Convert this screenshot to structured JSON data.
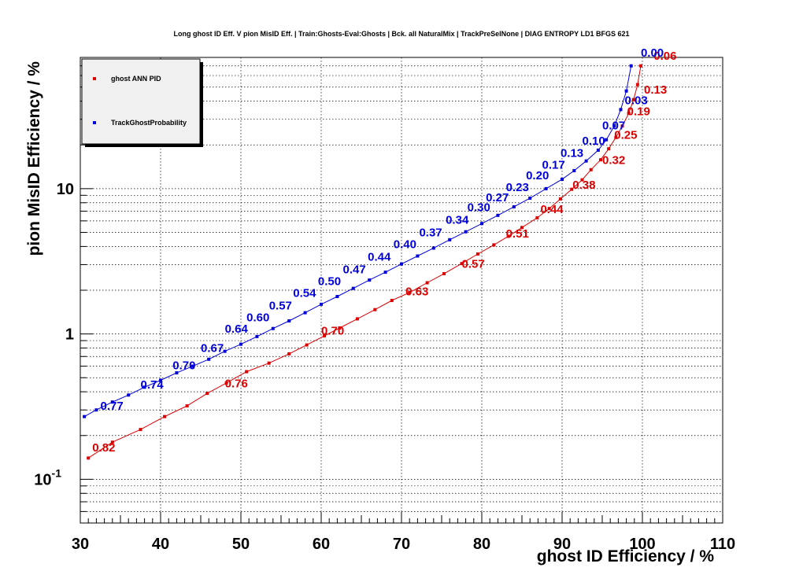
{
  "chart_data": {
    "type": "line",
    "title": "Long ghost ID Eff. V pion MisID Eff. | Train:Ghosts-Eval:Ghosts | Bck. all NaturalMix | TrackPreSelNone | DIAG ENTROPY LD1 BFGS 621",
    "xlabel": "ghost ID Efficiency / %",
    "ylabel": "pion MisID Efficiency / %",
    "xlim": [
      30,
      110
    ],
    "ylim": [
      0.05,
      80
    ],
    "yscale": "log",
    "grid": true,
    "legend_position": "top-left",
    "x_ticks": [
      "30",
      "40",
      "50",
      "60",
      "70",
      "80",
      "90",
      "100",
      "110"
    ],
    "y_ticks": [
      {
        "value": 0.1,
        "base": "10",
        "exp": "-1"
      },
      {
        "value": 1,
        "base": "1",
        "exp": ""
      },
      {
        "value": 10,
        "base": "10",
        "exp": ""
      }
    ],
    "series": [
      {
        "name": "ghost ANN PID",
        "color": "#dd0000",
        "x": [
          31,
          34,
          37.5,
          40.5,
          43.3,
          45.8,
          48.2,
          50.7,
          53.5,
          56,
          58.2,
          60.4,
          62.3,
          64.5,
          66.7,
          68.8,
          71,
          73.2,
          75.3,
          77.5,
          79.5,
          81.5,
          83.3,
          85,
          86.9,
          88.4,
          89.8,
          91.2,
          92.5,
          93.6,
          94.8,
          95.8,
          96.7,
          97.5,
          98.3,
          98.9,
          99.4,
          99.8
        ],
        "y": [
          0.14,
          0.18,
          0.22,
          0.27,
          0.32,
          0.39,
          0.46,
          0.55,
          0.63,
          0.73,
          0.84,
          0.97,
          1.1,
          1.27,
          1.47,
          1.7,
          1.93,
          2.25,
          2.6,
          3.05,
          3.55,
          4.1,
          4.7,
          5.4,
          6.3,
          7.3,
          8.5,
          9.9,
          11.5,
          13.5,
          15.8,
          18.8,
          22.5,
          27,
          33,
          41,
          52,
          70
        ]
      },
      {
        "name": "TrackGhostProbability",
        "color": "#0000dd",
        "x": [
          30.5,
          32,
          34,
          36,
          38,
          40,
          42,
          44,
          46,
          48,
          50,
          52,
          54,
          56,
          58,
          60,
          62,
          64,
          66,
          68,
          70,
          72,
          74,
          76,
          78,
          80,
          82,
          84,
          86,
          88,
          90,
          91.5,
          93,
          94.5,
          95.5,
          96.5,
          97.3,
          98,
          98.6
        ],
        "y": [
          0.27,
          0.3,
          0.34,
          0.38,
          0.43,
          0.48,
          0.54,
          0.6,
          0.67,
          0.76,
          0.85,
          0.96,
          1.09,
          1.23,
          1.4,
          1.6,
          1.81,
          2.06,
          2.35,
          2.66,
          3.03,
          3.44,
          3.9,
          4.45,
          5.05,
          5.75,
          6.55,
          7.5,
          8.6,
          10,
          11.6,
          13.3,
          15.5,
          18.4,
          21.7,
          27,
          35,
          47,
          70
        ]
      }
    ],
    "annotations": [
      {
        "series": 0,
        "text": "0.82",
        "x": 31.5,
        "y": 0.155
      },
      {
        "series": 0,
        "text": "0.76",
        "x": 48,
        "y": 0.43
      },
      {
        "series": 0,
        "text": "0.70",
        "x": 60,
        "y": 0.99
      },
      {
        "series": 0,
        "text": "0.63",
        "x": 70.5,
        "y": 1.85
      },
      {
        "series": 0,
        "text": "0.57",
        "x": 77.5,
        "y": 2.85
      },
      {
        "series": 0,
        "text": "0.51",
        "x": 83,
        "y": 4.6
      },
      {
        "series": 0,
        "text": "0.44",
        "x": 87.3,
        "y": 6.8
      },
      {
        "series": 0,
        "text": "0.38",
        "x": 91.3,
        "y": 10
      },
      {
        "series": 0,
        "text": "0.32",
        "x": 95,
        "y": 14.8
      },
      {
        "series": 0,
        "text": "0.25",
        "x": 96.5,
        "y": 22
      },
      {
        "series": 0,
        "text": "0.19",
        "x": 98.1,
        "y": 32
      },
      {
        "series": 0,
        "text": "0.13",
        "x": 100.2,
        "y": 45
      },
      {
        "series": 0,
        "text": "0.06",
        "x": 101.4,
        "y": 77
      },
      {
        "series": 1,
        "text": "0.77",
        "x": 32.5,
        "y": 0.3
      },
      {
        "series": 1,
        "text": "0.74",
        "x": 37.5,
        "y": 0.42
      },
      {
        "series": 1,
        "text": "0.70",
        "x": 41.5,
        "y": 0.57
      },
      {
        "series": 1,
        "text": "0.67",
        "x": 45,
        "y": 0.75
      },
      {
        "series": 1,
        "text": "0.64",
        "x": 48,
        "y": 1.02
      },
      {
        "series": 1,
        "text": "0.60",
        "x": 50.7,
        "y": 1.22
      },
      {
        "series": 1,
        "text": "0.57",
        "x": 53.5,
        "y": 1.47
      },
      {
        "series": 1,
        "text": "0.54",
        "x": 56.5,
        "y": 1.8
      },
      {
        "series": 1,
        "text": "0.50",
        "x": 59.6,
        "y": 2.17
      },
      {
        "series": 1,
        "text": "0.47",
        "x": 62.7,
        "y": 2.62
      },
      {
        "series": 1,
        "text": "0.44",
        "x": 65.8,
        "y": 3.2
      },
      {
        "series": 1,
        "text": "0.40",
        "x": 69,
        "y": 3.9
      },
      {
        "series": 1,
        "text": "0.37",
        "x": 72.2,
        "y": 4.7
      },
      {
        "series": 1,
        "text": "0.34",
        "x": 75.5,
        "y": 5.75
      },
      {
        "series": 1,
        "text": "0.30",
        "x": 78.2,
        "y": 7
      },
      {
        "series": 1,
        "text": "0.27",
        "x": 80.5,
        "y": 8.2
      },
      {
        "series": 1,
        "text": "0.23",
        "x": 83,
        "y": 9.6
      },
      {
        "series": 1,
        "text": "0.20",
        "x": 85.5,
        "y": 11.6
      },
      {
        "series": 1,
        "text": "0.17",
        "x": 87.5,
        "y": 13.7
      },
      {
        "series": 1,
        "text": "0.13",
        "x": 89.8,
        "y": 16.5
      },
      {
        "series": 1,
        "text": "0.10",
        "x": 92.5,
        "y": 20
      },
      {
        "series": 1,
        "text": "0.07",
        "x": 95,
        "y": 25.5
      },
      {
        "series": 1,
        "text": "0.03",
        "x": 97.8,
        "y": 38
      },
      {
        "series": 1,
        "text": "0.00",
        "x": 99.8,
        "y": 81
      }
    ]
  }
}
